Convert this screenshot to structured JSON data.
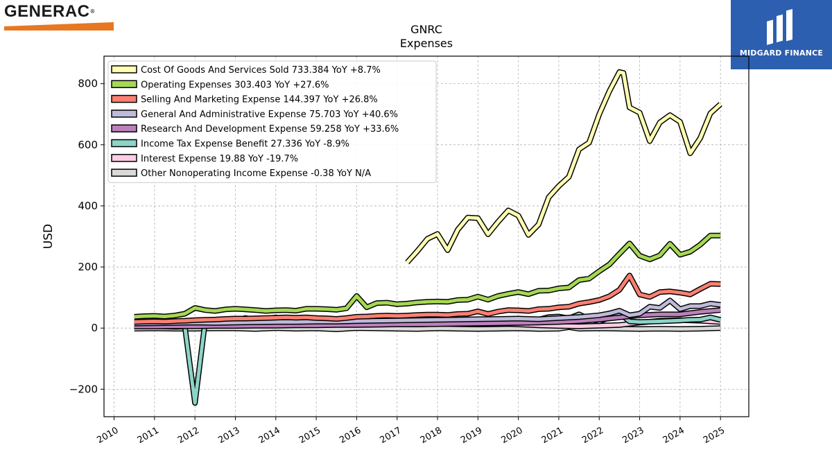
{
  "brand": {
    "left_logo_text": "GENERAC",
    "right_logo_text": "MIDGARD FINANCE",
    "orange": "#e87722",
    "blue": "#2c5fb0"
  },
  "chart_data": {
    "type": "line",
    "title": "GNRC",
    "subtitle": "Expenses",
    "xlabel": "",
    "ylabel": "USD",
    "xlim": [
      2009.75,
      2025.7
    ],
    "ylim": [
      -290,
      890
    ],
    "x_ticks": [
      "2010",
      "2011",
      "2012",
      "2013",
      "2014",
      "2015",
      "2016",
      "2017",
      "2018",
      "2019",
      "2020",
      "2021",
      "2022",
      "2023",
      "2024",
      "2025"
    ],
    "y_ticks": [
      -200,
      0,
      200,
      400,
      600,
      800
    ],
    "y_tick_labels": [
      "−200",
      "0",
      "200",
      "400",
      "600",
      "800"
    ],
    "grid": true,
    "legend_position": "top-left",
    "series": [
      {
        "name": "Cost Of Goods And Services Sold",
        "legend": "Cost Of Goods And Services Sold  733.384 YoY +8.7%",
        "color": "#ffffb3",
        "x": [
          2017.25,
          2017.5,
          2017.75,
          2018.0,
          2018.25,
          2018.5,
          2018.75,
          2019.0,
          2019.25,
          2019.5,
          2019.75,
          2020.0,
          2020.25,
          2020.5,
          2020.75,
          2021.0,
          2021.25,
          2021.5,
          2021.75,
          2022.0,
          2022.25,
          2022.5,
          2022.6,
          2022.75,
          2023.0,
          2023.25,
          2023.5,
          2023.75,
          2024.0,
          2024.25,
          2024.5,
          2024.75,
          2025.0
        ],
        "y": [
          215,
          252,
          292,
          308,
          255,
          322,
          362,
          360,
          307,
          348,
          385,
          368,
          305,
          339,
          428,
          465,
          495,
          585,
          607,
          700,
          775,
          838,
          835,
          722,
          705,
          612,
          673,
          697,
          675,
          572,
          622,
          703,
          733
        ]
      },
      {
        "name": "Operating Expenses",
        "legend": "Operating Expenses  303.403 YoY +27.6%",
        "color": "#a6d854",
        "x": [
          2010.5,
          2010.75,
          2011.0,
          2011.25,
          2011.5,
          2011.75,
          2012.0,
          2012.25,
          2012.5,
          2012.75,
          2013.0,
          2013.25,
          2013.5,
          2013.75,
          2014.0,
          2014.25,
          2014.5,
          2014.75,
          2015.0,
          2015.25,
          2015.5,
          2015.75,
          2016.0,
          2016.25,
          2016.5,
          2016.75,
          2017.0,
          2017.25,
          2017.5,
          2017.75,
          2018.0,
          2018.25,
          2018.5,
          2018.75,
          2019.0,
          2019.25,
          2019.5,
          2019.75,
          2020.0,
          2020.25,
          2020.5,
          2020.75,
          2021.0,
          2021.25,
          2021.5,
          2021.75,
          2022.0,
          2022.25,
          2022.5,
          2022.75,
          2023.0,
          2023.25,
          2023.5,
          2023.75,
          2024.0,
          2024.25,
          2024.5,
          2024.75,
          2025.0
        ],
        "y": [
          37,
          39,
          40,
          38,
          41,
          47,
          66,
          59,
          56,
          61,
          63,
          61,
          59,
          56,
          58,
          59,
          57,
          63,
          63,
          62,
          60,
          65,
          105,
          68,
          82,
          83,
          78,
          80,
          84,
          86,
          87,
          86,
          92,
          93,
          103,
          93,
          105,
          112,
          118,
          111,
          122,
          123,
          130,
          133,
          157,
          162,
          186,
          208,
          243,
          277,
          237,
          225,
          238,
          276,
          240,
          250,
          273,
          303,
          303
        ]
      },
      {
        "name": "Selling And Marketing Expense",
        "legend": "Selling And Marketing Expense  144.397 YoY +26.8%",
        "color": "#fb8072",
        "x": [
          2010.5,
          2010.75,
          2011.0,
          2011.25,
          2011.5,
          2011.75,
          2012.0,
          2012.25,
          2012.5,
          2012.75,
          2013.0,
          2013.25,
          2013.5,
          2013.75,
          2014.0,
          2014.25,
          2014.5,
          2014.75,
          2015.0,
          2015.25,
          2015.5,
          2015.75,
          2016.0,
          2016.25,
          2016.5,
          2016.75,
          2017.0,
          2017.25,
          2017.5,
          2017.75,
          2018.0,
          2018.25,
          2018.5,
          2018.75,
          2019.0,
          2019.25,
          2019.5,
          2019.75,
          2020.0,
          2020.25,
          2020.5,
          2020.75,
          2021.0,
          2021.25,
          2021.5,
          2021.75,
          2022.0,
          2022.25,
          2022.5,
          2022.75,
          2023.0,
          2023.25,
          2023.5,
          2023.75,
          2024.0,
          2024.25,
          2024.5,
          2024.75,
          2025.0
        ],
        "y": [
          20,
          21,
          22,
          21,
          23,
          24,
          26,
          27,
          28,
          30,
          31,
          31,
          32,
          33,
          34,
          35,
          34,
          35,
          33,
          32,
          30,
          33,
          37,
          38,
          40,
          41,
          40,
          41,
          43,
          44,
          44,
          43,
          46,
          47,
          55,
          46,
          54,
          59,
          58,
          56,
          62,
          63,
          68,
          70,
          80,
          85,
          92,
          104,
          125,
          172,
          110,
          102,
          118,
          120,
          116,
          110,
          128,
          145,
          144
        ]
      },
      {
        "name": "General And Administrative Expense",
        "legend": "General And Administrative Expense  75.703 YoY +40.6%",
        "color": "#bebada",
        "x": [
          2010.5,
          2011.0,
          2011.5,
          2012.0,
          2012.5,
          2013.0,
          2013.5,
          2014.0,
          2014.5,
          2015.0,
          2015.5,
          2016.0,
          2016.5,
          2017.0,
          2017.5,
          2018.0,
          2018.5,
          2019.0,
          2019.5,
          2020.0,
          2020.5,
          2021.0,
          2021.5,
          2022.0,
          2022.25,
          2022.5,
          2022.75,
          2023.0,
          2023.25,
          2023.5,
          2023.75,
          2024.0,
          2024.25,
          2024.5,
          2024.75,
          2025.0
        ],
        "y": [
          15,
          16,
          17,
          18,
          17,
          18,
          19,
          20,
          20,
          21,
          21,
          23,
          24,
          25,
          26,
          27,
          28,
          29,
          30,
          31,
          29,
          33,
          36,
          42,
          48,
          57,
          42,
          47,
          70,
          66,
          90,
          62,
          72,
          72,
          80,
          76
        ]
      },
      {
        "name": "Research And Development Expense",
        "legend": "Research And Development Expense  59.258 YoY +33.6%",
        "color": "#bc80bd",
        "x": [
          2010.5,
          2011.0,
          2011.5,
          2012.0,
          2012.5,
          2013.0,
          2013.5,
          2014.0,
          2014.5,
          2015.0,
          2015.5,
          2016.0,
          2016.5,
          2017.0,
          2017.5,
          2018.0,
          2018.5,
          2019.0,
          2019.5,
          2020.0,
          2020.5,
          2021.0,
          2021.5,
          2022.0,
          2022.5,
          2023.0,
          2023.5,
          2024.0,
          2024.5,
          2025.0
        ],
        "y": [
          5,
          5,
          6,
          6,
          7,
          7,
          8,
          8,
          9,
          9,
          10,
          10,
          11,
          12,
          12,
          13,
          14,
          15,
          16,
          17,
          18,
          20,
          23,
          28,
          35,
          42,
          45,
          45,
          53,
          59
        ]
      },
      {
        "name": "Income Tax Expense Benefit",
        "legend": "Income Tax Expense Benefit  27.336 YoY -8.9%",
        "color": "#8dd3c7",
        "x": [
          2010.5,
          2011.0,
          2011.5,
          2011.75,
          2012.0,
          2012.25,
          2012.5,
          2013.0,
          2013.25,
          2013.5,
          2014.0,
          2014.25,
          2014.5,
          2015.0,
          2015.5,
          2016.0,
          2016.5,
          2017.0,
          2017.5,
          2018.0,
          2018.5,
          2019.0,
          2019.5,
          2020.0,
          2020.25,
          2020.5,
          2020.75,
          2021.0,
          2021.25,
          2021.5,
          2021.75,
          2022.0,
          2022.25,
          2022.5,
          2022.75,
          2023.0,
          2023.5,
          2024.0,
          2024.25,
          2024.5,
          2024.75,
          2025.0
        ],
        "y": [
          5,
          6,
          4,
          5,
          -245,
          20,
          18,
          25,
          33,
          25,
          35,
          26,
          25,
          22,
          24,
          20,
          21,
          22,
          24,
          22,
          22,
          23,
          26,
          24,
          17,
          28,
          36,
          38,
          32,
          45,
          30,
          22,
          34,
          48,
          22,
          20,
          22,
          25,
          27,
          28,
          35,
          27
        ]
      },
      {
        "name": "Interest Expense",
        "legend": "Interest Expense  19.88 YoY -19.7%",
        "color": "#fccde5",
        "x": [
          2010.5,
          2011.0,
          2011.5,
          2012.0,
          2012.5,
          2013.0,
          2013.5,
          2014.0,
          2014.5,
          2015.0,
          2015.5,
          2016.0,
          2016.5,
          2017.0,
          2017.5,
          2018.0,
          2018.5,
          2019.0,
          2019.5,
          2020.0,
          2020.5,
          2021.0,
          2021.5,
          2022.0,
          2022.5,
          2023.0,
          2023.5,
          2024.0,
          2024.5,
          2025.0
        ],
        "y": [
          9,
          9,
          10,
          12,
          18,
          18,
          16,
          15,
          14,
          15,
          14,
          15,
          15,
          15,
          16,
          15,
          15,
          15,
          15,
          12,
          9,
          7,
          6,
          8,
          10,
          18,
          24,
          26,
          24,
          20
        ]
      },
      {
        "name": "Other Nonoperating Income Expense",
        "legend": "Other Nonoperating Income Expense  -0.38 YoY N/A",
        "color": "#d9d9d9",
        "x": [
          2010.5,
          2011.0,
          2011.5,
          2012.0,
          2012.5,
          2013.0,
          2013.5,
          2014.0,
          2014.5,
          2015.0,
          2015.5,
          2016.0,
          2016.5,
          2017.0,
          2017.5,
          2018.0,
          2018.5,
          2019.0,
          2019.5,
          2020.0,
          2020.5,
          2021.0,
          2021.25,
          2021.5,
          2022.0,
          2022.5,
          2023.0,
          2023.5,
          2024.0,
          2024.5,
          2025.0
        ],
        "y": [
          -2,
          -1,
          -2,
          -2,
          -1,
          -1,
          -3,
          0,
          -2,
          -1,
          -4,
          0,
          -1,
          -2,
          -3,
          -1,
          -2,
          -3,
          -2,
          -1,
          -3,
          -2,
          3,
          -2,
          -1,
          -2,
          -3,
          -2,
          -3,
          -2,
          0
        ]
      }
    ]
  }
}
